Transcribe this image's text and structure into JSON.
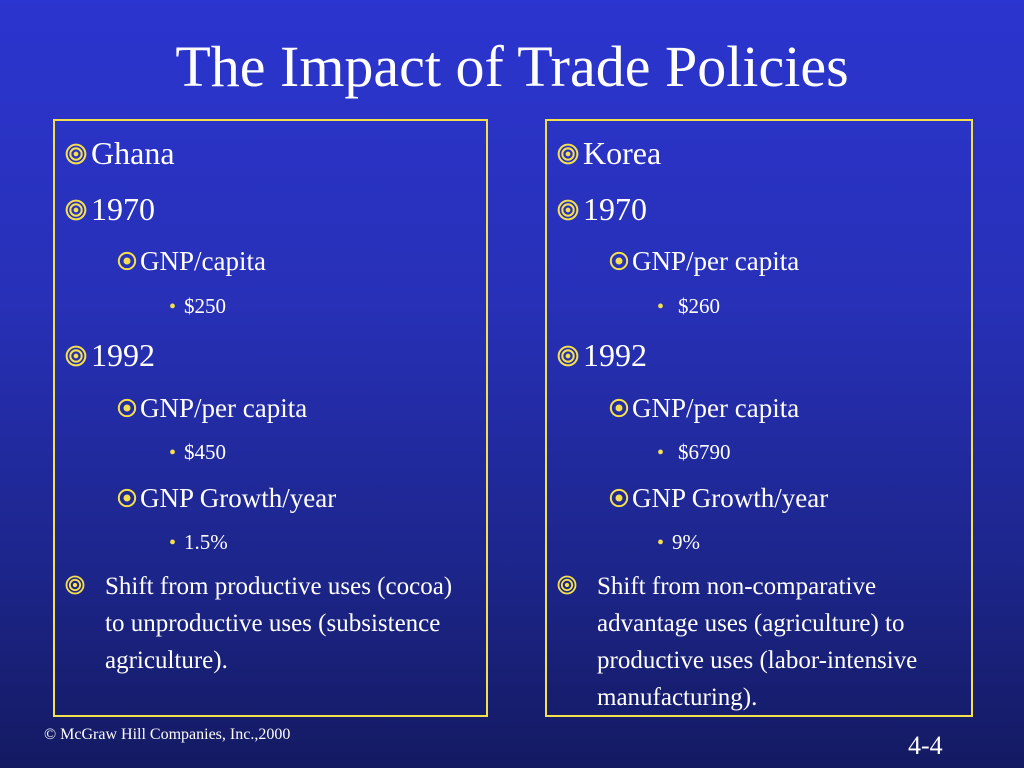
{
  "title": "The Impact of Trade Policies",
  "accent_color": "#f4e04d",
  "left": {
    "country": "Ghana",
    "year1": "1970",
    "gnp1_label": "GNP/capita",
    "gnp1_value": "$250",
    "year2": "1992",
    "gnp2_label": "GNP/per capita",
    "gnp2_value": "$450",
    "growth_label": "GNP Growth/year",
    "growth_value": "1.5%",
    "shift_text": "Shift from productive uses (cocoa) to unproductive uses (subsistence agriculture)."
  },
  "right": {
    "country": "Korea",
    "year1": "1970",
    "gnp1_label": "GNP/per capita",
    "gnp1_value": "$260",
    "year2": "1992",
    "gnp2_label": "GNP/per capita",
    "gnp2_value": "$6790",
    "growth_label": "GNP Growth/year",
    "growth_value": "9%",
    "shift_text": "Shift from non-comparative advantage uses (agriculture) to productive uses (labor-intensive manufacturing)."
  },
  "footer": {
    "copyright": "© McGraw Hill Companies, Inc.,2000",
    "page_number": "4-4"
  }
}
